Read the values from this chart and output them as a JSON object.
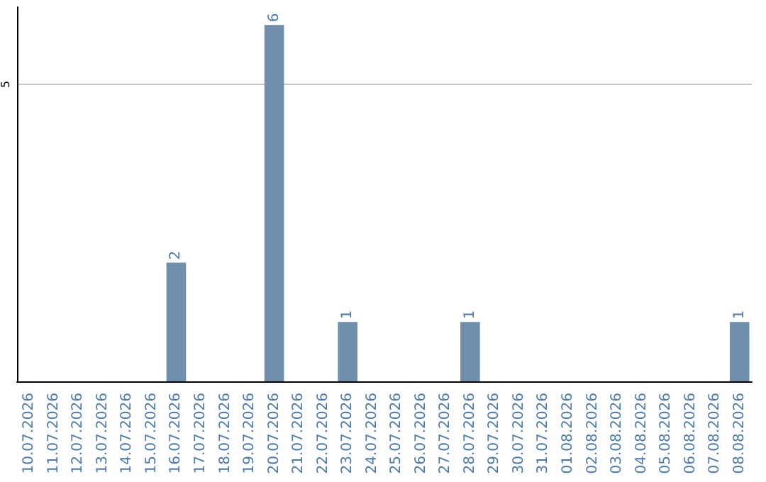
{
  "chart_data": {
    "type": "bar",
    "categories": [
      "10.07.2026",
      "11.07.2026",
      "12.07.2026",
      "13.07.2026",
      "14.07.2026",
      "15.07.2026",
      "16.07.2026",
      "17.07.2026",
      "18.07.2026",
      "19.07.2026",
      "20.07.2026",
      "21.07.2026",
      "22.07.2026",
      "23.07.2026",
      "24.07.2026",
      "25.07.2026",
      "26.07.2026",
      "27.07.2026",
      "28.07.2026",
      "29.07.2026",
      "30.07.2026",
      "31.07.2026",
      "01.08.2026",
      "02.08.2026",
      "03.08.2026",
      "04.08.2026",
      "05.08.2026",
      "06.08.2026",
      "07.08.2026",
      "08.08.2026"
    ],
    "values": [
      0,
      0,
      0,
      0,
      0,
      0,
      2,
      0,
      0,
      0,
      6,
      0,
      0,
      1,
      0,
      0,
      0,
      0,
      1,
      0,
      0,
      0,
      0,
      0,
      0,
      0,
      0,
      0,
      0,
      1
    ],
    "value_labels": [
      null,
      null,
      null,
      null,
      null,
      null,
      "2",
      null,
      null,
      null,
      "6",
      null,
      null,
      "1",
      null,
      null,
      null,
      null,
      "1",
      null,
      null,
      null,
      null,
      null,
      null,
      null,
      null,
      null,
      null,
      "1"
    ],
    "color": "#6f8fad",
    "ylim": [
      0,
      6.3
    ],
    "yticks": [
      5
    ],
    "grid": "y"
  }
}
